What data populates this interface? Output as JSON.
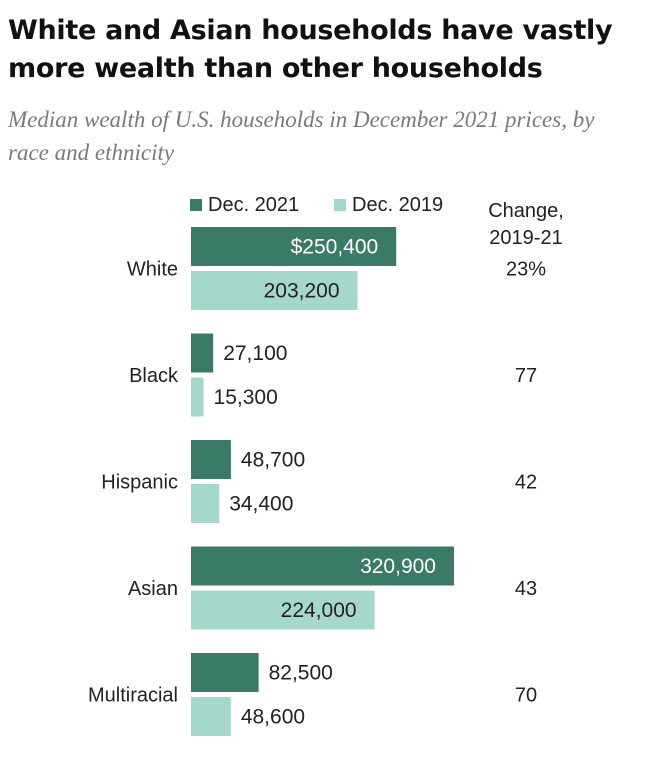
{
  "title": "White and Asian households have vastly more wealth than other households",
  "subtitle": "Median wealth of U.S. households in December 2021 prices, by race and ethnicity",
  "legend": {
    "dec2021": "Dec. 2021",
    "dec2019": "Dec. 2019"
  },
  "change_header": {
    "line1": "Change,",
    "line2": "2019-21"
  },
  "colors": {
    "dec2021": "#3a7a67",
    "dec2019": "#a6d7cb"
  },
  "chart_data": {
    "type": "bar",
    "orientation": "horizontal",
    "title": "White and Asian households have vastly more wealth than other households",
    "subtitle": "Median wealth of U.S. households in December 2021 prices, by race and ethnicity",
    "categories": [
      "White",
      "Black",
      "Hispanic",
      "Asian",
      "Multiracial"
    ],
    "series": [
      {
        "name": "Dec. 2021",
        "values": [
          250400,
          27100,
          48700,
          320900,
          82500
        ],
        "labels": [
          "$250,400",
          "27,100",
          "48,700",
          "320,900",
          "82,500"
        ]
      },
      {
        "name": "Dec. 2019",
        "values": [
          203200,
          15300,
          34400,
          224000,
          48600
        ],
        "labels": [
          "203,200",
          "15,300",
          "34,400",
          "224,000",
          "48,600"
        ]
      }
    ],
    "change_2019_21": [
      "23%",
      "77",
      "42",
      "43",
      "70"
    ],
    "xlim": [
      0,
      320900
    ],
    "grid": false,
    "legend_position": "top"
  }
}
